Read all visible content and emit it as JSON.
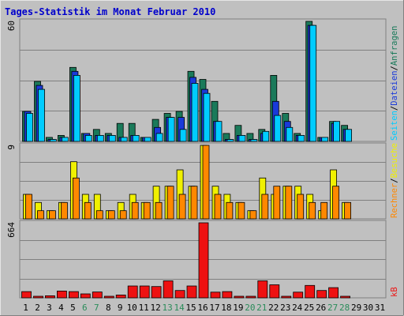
{
  "colors": {
    "background": "#c0c0c0",
    "frame_dark": "#808080",
    "frame_light": "#e6e6e6",
    "title": "#0000cc",
    "grid": "#808080",
    "hits": "#1a7a5a",
    "files": "#1a3ad9",
    "pages": "#00ccff",
    "visits": "#f0f000",
    "sites": "#ff8800",
    "kbytes": "#ee1111",
    "weekend_day": "#2a8c5a",
    "weekday": "#000000",
    "axis_max_text": "#000000"
  },
  "chart_data": {
    "type": "bar",
    "title": "Tages-Statistik im Monat Februar 2010",
    "days": [
      "1",
      "2",
      "3",
      "4",
      "5",
      "6",
      "7",
      "8",
      "9",
      "10",
      "11",
      "12",
      "13",
      "14",
      "15",
      "16",
      "17",
      "18",
      "19",
      "20",
      "21",
      "22",
      "23",
      "24",
      "25",
      "26",
      "27",
      "28",
      "29",
      "30",
      "31"
    ],
    "weekend_days": [
      "6",
      "7",
      "13",
      "14",
      "20",
      "21",
      "27",
      "28"
    ],
    "panels": [
      {
        "id": "top",
        "ymax_label": "60",
        "ymax": 60,
        "legend": [
          {
            "key": "hits",
            "label": "Anfragen"
          },
          {
            "key": "files",
            "label": "Dateien"
          },
          {
            "key": "pages",
            "label": "Seiten"
          }
        ],
        "series": [
          {
            "key": "hits",
            "values": [
              15,
              30,
              2,
              3,
              37,
              4,
              6,
              4,
              9,
              9,
              2,
              11,
              14,
              15,
              35,
              31,
              20,
              4,
              8,
              4,
              6,
              33,
              14,
              4,
              60,
              2,
              10,
              8,
              0,
              0,
              0
            ]
          },
          {
            "key": "files",
            "values": [
              15,
              28,
              1,
              2,
              35,
              4,
              3,
              3,
              2,
              3,
              2,
              7,
              12,
              12,
              32,
              26,
              10,
              1,
              3,
              1,
              4,
              20,
              10,
              3,
              58,
              2,
              9,
              6,
              0,
              0,
              0
            ]
          },
          {
            "key": "pages",
            "values": [
              14,
              26,
              1,
              2,
              33,
              3,
              3,
              3,
              2,
              3,
              2,
              4,
              12,
              6,
              29,
              24,
              10,
              1,
              3,
              1,
              5,
              13,
              7,
              3,
              58,
              2,
              10,
              6,
              0,
              0,
              0
            ]
          }
        ]
      },
      {
        "id": "middle",
        "ymax_label": "9",
        "ymax": 9,
        "legend": [
          {
            "key": "visits",
            "label": "Besuche"
          },
          {
            "key": "sites",
            "label": "Rechner"
          }
        ],
        "series": [
          {
            "key": "visits",
            "values": [
              3,
              2,
              1,
              2,
              7,
              3,
              3,
              1,
              2,
              3,
              2,
              4,
              4,
              6,
              4,
              9,
              4,
              3,
              2,
              1,
              5,
              3,
              4,
              4,
              3,
              1,
              6,
              2,
              0,
              0,
              0
            ]
          },
          {
            "key": "sites",
            "values": [
              3,
              1,
              1,
              2,
              5,
              2,
              1,
              1,
              1,
              2,
              2,
              2,
              4,
              3,
              4,
              9,
              3,
              2,
              2,
              1,
              3,
              4,
              4,
              3,
              2,
              2,
              4,
              2,
              0,
              0,
              0
            ]
          }
        ]
      },
      {
        "id": "bottom",
        "ymax_label": "664",
        "ymax": 664,
        "legend": [
          {
            "key": "kbytes",
            "label": "kB"
          }
        ],
        "series": [
          {
            "key": "kbytes",
            "values": [
              55,
              12,
              18,
              60,
              55,
              35,
              52,
              5,
              25,
              105,
              105,
              100,
              150,
              65,
              105,
              664,
              50,
              55,
              5,
              5,
              150,
              115,
              5,
              50,
              110,
              65,
              90,
              5,
              0,
              0,
              0
            ]
          }
        ]
      }
    ]
  }
}
